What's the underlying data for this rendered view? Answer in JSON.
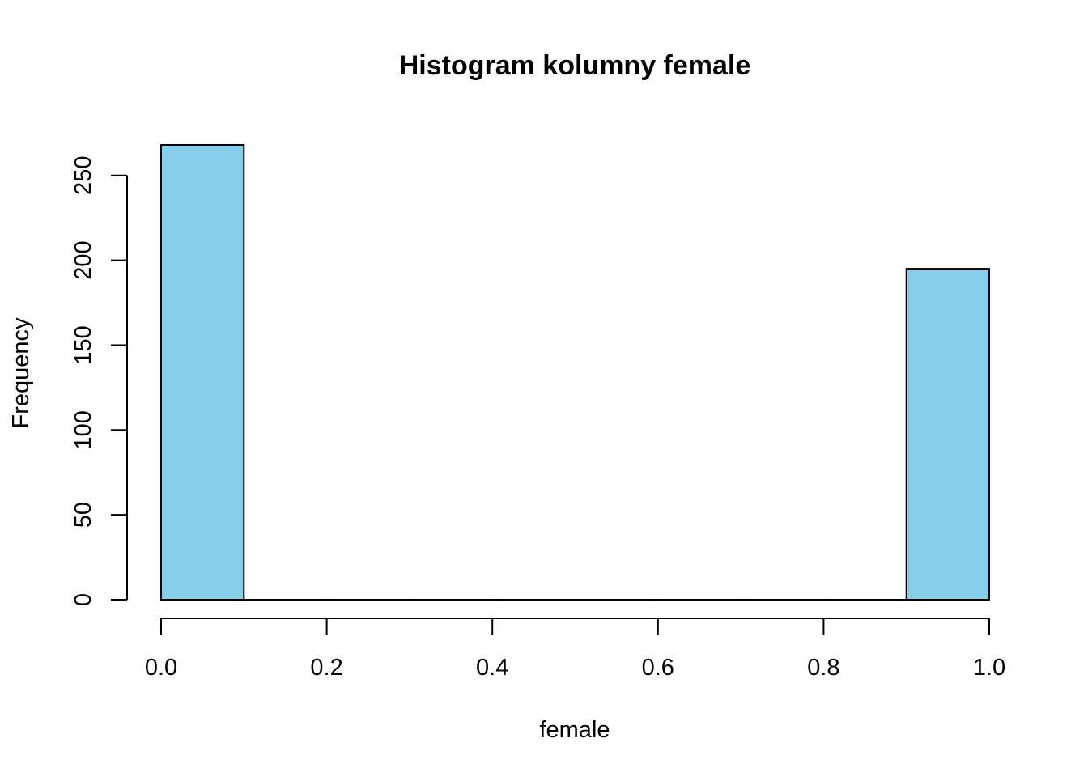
{
  "chart_data": {
    "type": "bar",
    "title": "Histogram kolumny female",
    "xlabel": "female",
    "ylabel": "Frequency",
    "bins": [
      {
        "x0": 0.0,
        "x1": 0.1,
        "count": 268
      },
      {
        "x0": 0.1,
        "x1": 0.2,
        "count": 0
      },
      {
        "x0": 0.2,
        "x1": 0.3,
        "count": 0
      },
      {
        "x0": 0.3,
        "x1": 0.4,
        "count": 0
      },
      {
        "x0": 0.4,
        "x1": 0.5,
        "count": 0
      },
      {
        "x0": 0.5,
        "x1": 0.6,
        "count": 0
      },
      {
        "x0": 0.6,
        "x1": 0.7,
        "count": 0
      },
      {
        "x0": 0.7,
        "x1": 0.8,
        "count": 0
      },
      {
        "x0": 0.8,
        "x1": 0.9,
        "count": 0
      },
      {
        "x0": 0.9,
        "x1": 1.0,
        "count": 195
      }
    ],
    "x_ticks": [
      0.0,
      0.2,
      0.4,
      0.6,
      0.8,
      1.0
    ],
    "x_tick_labels": [
      "0.0",
      "0.2",
      "0.4",
      "0.6",
      "0.8",
      "1.0"
    ],
    "y_ticks": [
      0,
      50,
      100,
      150,
      200,
      250
    ],
    "y_tick_labels": [
      "0",
      "50",
      "100",
      "150",
      "200",
      "250"
    ],
    "xlim": [
      0.0,
      1.0
    ],
    "ylim": [
      0,
      268
    ],
    "bar_color": "#87CEEB",
    "grid": false,
    "legend": "none"
  }
}
